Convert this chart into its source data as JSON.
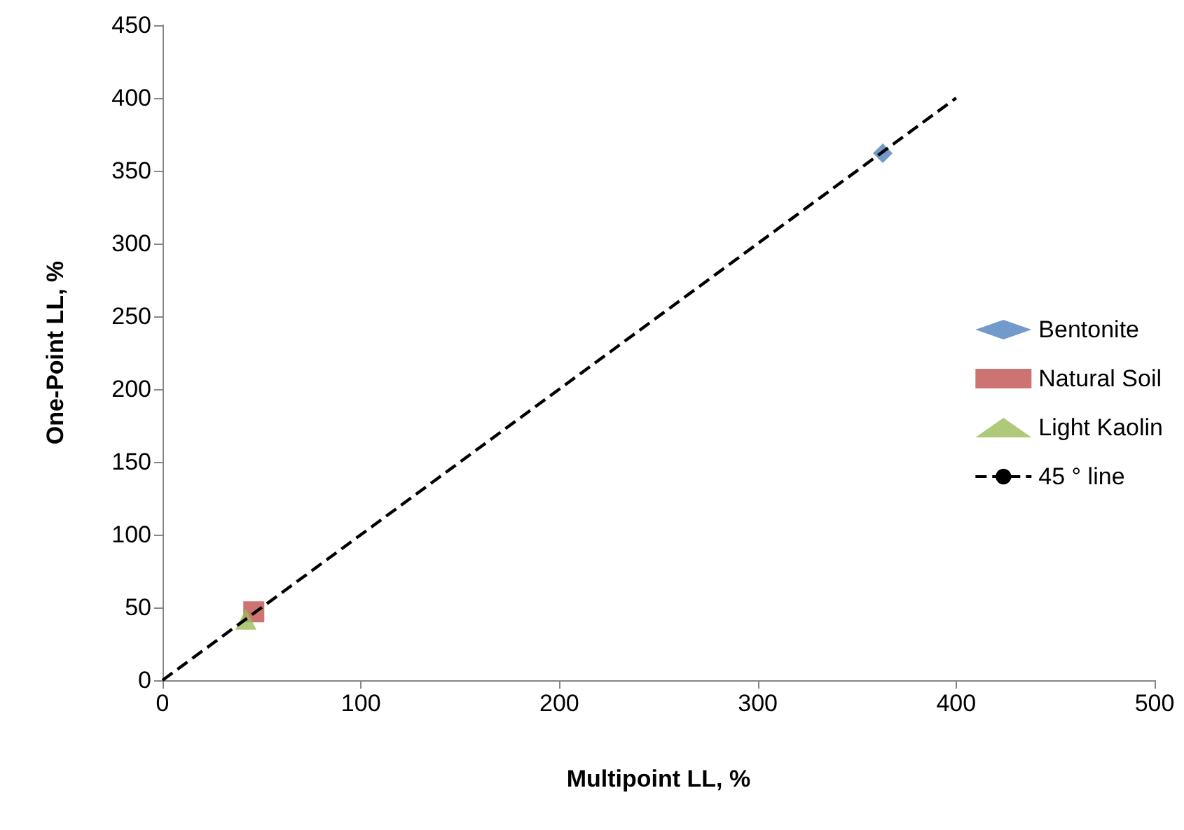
{
  "chart_data": {
    "type": "scatter",
    "xlabel": "Multipoint LL, %",
    "ylabel": "One-Point LL, %",
    "xlim": [
      0,
      500
    ],
    "xticks": [
      0,
      100,
      200,
      300,
      400,
      500
    ],
    "ylim": [
      0,
      450
    ],
    "yticks": [
      0,
      50,
      100,
      150,
      200,
      250,
      300,
      350,
      400,
      450
    ],
    "grid": false,
    "legend": "right",
    "series": [
      {
        "name": "Bentonite",
        "color": "#4f81bd",
        "marker": "diamond",
        "x": [
          363
        ],
        "values": [
          362
        ]
      },
      {
        "name": "Natural Soil",
        "color": "#c0504d",
        "marker": "square",
        "x": [
          46
        ],
        "values": [
          47
        ]
      },
      {
        "name": "Light Kaolin",
        "color": "#9bbb59",
        "marker": "triangle",
        "x": [
          42
        ],
        "values": [
          42
        ]
      },
      {
        "name": "45 ° line",
        "type": "line",
        "color": "#000000",
        "marker": "none",
        "line_style": "dashed",
        "x": [
          0,
          400
        ],
        "values": [
          0,
          400
        ]
      }
    ]
  }
}
